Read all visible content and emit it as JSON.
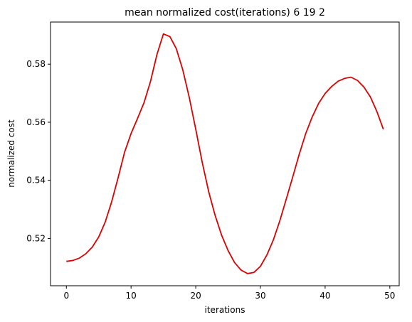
{
  "chart_data": {
    "type": "line",
    "title": "mean normalized cost(iterations) 6 19 2",
    "xlabel": "iterations",
    "ylabel": "normalized cost",
    "xlim": [
      -2.45,
      51.45
    ],
    "ylim": [
      0.5037,
      0.5945
    ],
    "xticks": [
      0,
      10,
      20,
      30,
      40,
      50
    ],
    "xtick_labels": [
      "0",
      "10",
      "20",
      "30",
      "40",
      "50"
    ],
    "yticks": [
      0.52,
      0.54,
      0.56,
      0.58
    ],
    "ytick_labels": [
      "0.52",
      "0.54",
      "0.56",
      "0.58"
    ],
    "grid": false,
    "series": [
      {
        "color": "#dd0000",
        "x": [
          0,
          1,
          2,
          3,
          4,
          5,
          6,
          7,
          8,
          9,
          10,
          11,
          12,
          13,
          14,
          15,
          16,
          17,
          18,
          19,
          20,
          21,
          22,
          23,
          24,
          25,
          26,
          27,
          28,
          29,
          30,
          31,
          32,
          33,
          34,
          35,
          36,
          37,
          38,
          39,
          40,
          41,
          42,
          43,
          44,
          45,
          46,
          47,
          48,
          49
        ],
        "y": [
          0.5121,
          0.5124,
          0.5132,
          0.5147,
          0.517,
          0.5205,
          0.5256,
          0.5326,
          0.5409,
          0.5497,
          0.5561,
          0.5613,
          0.5667,
          0.574,
          0.5833,
          0.5904,
          0.5895,
          0.5853,
          0.578,
          0.5685,
          0.5576,
          0.5462,
          0.5361,
          0.5279,
          0.5211,
          0.5158,
          0.5117,
          0.5091,
          0.5079,
          0.5083,
          0.5104,
          0.5143,
          0.5195,
          0.5261,
          0.5336,
          0.5412,
          0.549,
          0.5561,
          0.5618,
          0.5665,
          0.5699,
          0.5723,
          0.5741,
          0.5751,
          0.5755,
          0.5744,
          0.5721,
          0.5687,
          0.5637,
          0.5576
        ]
      }
    ]
  }
}
